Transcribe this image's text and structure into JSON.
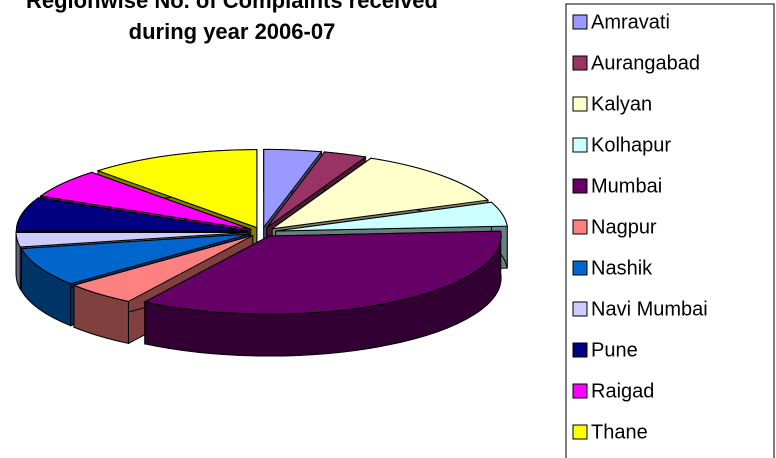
{
  "chart_data": {
    "type": "pie3d",
    "title": "Regionwise No. of Complaints received",
    "subtitle": "during year 2006-07",
    "categories": [
      "Amravati",
      "Aurangabad",
      "Kalyan",
      "Kolhapur",
      "Mumbai",
      "Nagpur",
      "Nashik",
      "Navi Mumbai",
      "Pune",
      "Raigad",
      "Thane"
    ],
    "values": [
      4,
      3,
      12,
      5,
      35,
      5,
      8,
      3,
      7,
      6,
      12
    ],
    "colors": [
      "#9999ff",
      "#993366",
      "#ffffcc",
      "#ccffff",
      "#660066",
      "#ff8080",
      "#0066cc",
      "#ccccff",
      "#000080",
      "#ff00ff",
      "#ffff00"
    ],
    "legend": "right"
  }
}
